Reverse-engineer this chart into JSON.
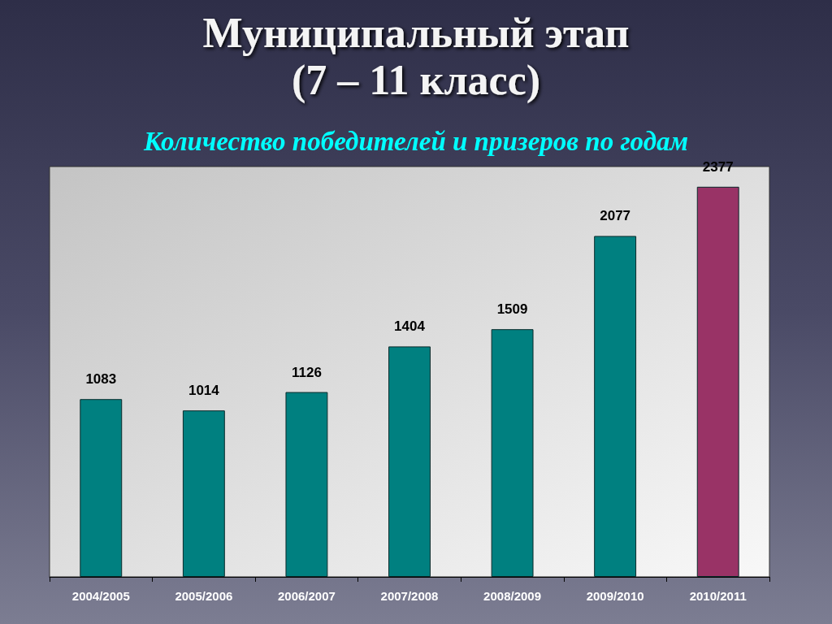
{
  "chart_data": {
    "type": "bar",
    "title": "Муниципальный этап\n(7 – 11 класс)",
    "subtitle": "Количество победителей и призеров по годам",
    "categories": [
      "2004/2005",
      "2005/2006",
      "2006/2007",
      "2007/2008",
      "2008/2009",
      "2009/2010",
      "2010/2011"
    ],
    "values": [
      1083,
      1014,
      1126,
      1404,
      1509,
      2077,
      2377
    ],
    "colors": [
      "#008080",
      "#008080",
      "#008080",
      "#008080",
      "#008080",
      "#008080",
      "#993366"
    ],
    "data_labels": true
  }
}
